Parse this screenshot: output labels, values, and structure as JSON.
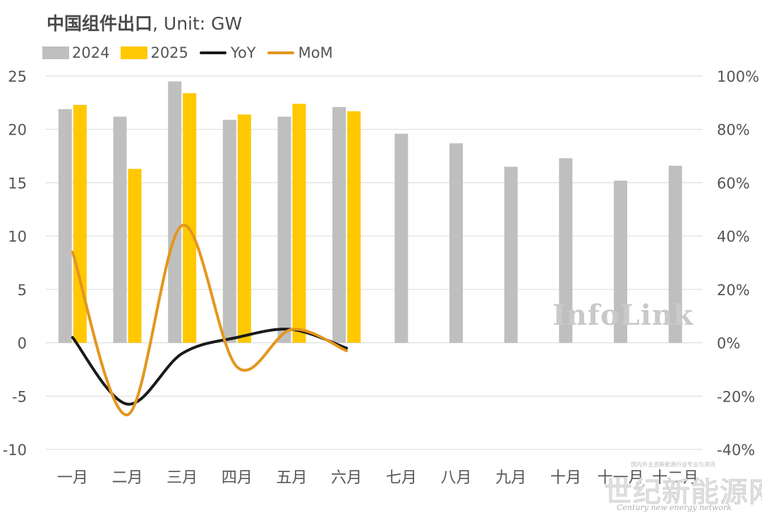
{
  "title": {
    "main": "中国组件出口",
    "unit": ", Unit: GW"
  },
  "legend": [
    {
      "label": "2024",
      "color": "#bfbfbf",
      "kind": "bar"
    },
    {
      "label": "2025",
      "color": "#ffc800",
      "kind": "bar"
    },
    {
      "label": "YoY",
      "color": "#1a1a1a",
      "kind": "line"
    },
    {
      "label": "MoM",
      "color": "#e3961e",
      "kind": "line"
    }
  ],
  "watermark": "InfoLink",
  "site_mark": {
    "top": "国内外主流新能源行业专业与资讯",
    "big": "世纪新能源网",
    "en": "Century new energy network"
  },
  "chart_data": {
    "type": "bar",
    "categories": [
      "一月",
      "二月",
      "三月",
      "四月",
      "五月",
      "六月",
      "七月",
      "八月",
      "九月",
      "十月",
      "十一月",
      "十二月"
    ],
    "series": [
      {
        "name": "2024",
        "type": "bar",
        "axis": "left",
        "color": "#bfbfbf",
        "values": [
          21.9,
          21.2,
          24.5,
          20.9,
          21.2,
          22.1,
          19.6,
          18.7,
          16.5,
          17.3,
          15.2,
          16.6
        ]
      },
      {
        "name": "2025",
        "type": "bar",
        "axis": "left",
        "color": "#ffc800",
        "values": [
          22.3,
          16.3,
          23.4,
          21.4,
          22.4,
          21.7,
          null,
          null,
          null,
          null,
          null,
          null
        ]
      },
      {
        "name": "YoY",
        "type": "line",
        "axis": "right",
        "unit": "%",
        "color": "#1a1a1a",
        "values": [
          2,
          -23,
          -4,
          2,
          5,
          -2,
          null,
          null,
          null,
          null,
          null,
          null
        ]
      },
      {
        "name": "MoM",
        "type": "line",
        "axis": "right",
        "unit": "%",
        "color": "#e3961e",
        "values": [
          34,
          -27,
          44,
          -9,
          5,
          -3,
          null,
          null,
          null,
          null,
          null,
          null
        ]
      }
    ],
    "yleft": {
      "min": -10,
      "max": 25,
      "ticks": [
        25,
        20,
        15,
        10,
        5,
        0,
        -5,
        -10
      ]
    },
    "yright": {
      "min": -40,
      "max": 100,
      "ticks": [
        "100%",
        "80%",
        "60%",
        "40%",
        "20%",
        "0%",
        "-20%",
        "-40%"
      ]
    },
    "grid": true,
    "legend_position": "top-left"
  }
}
